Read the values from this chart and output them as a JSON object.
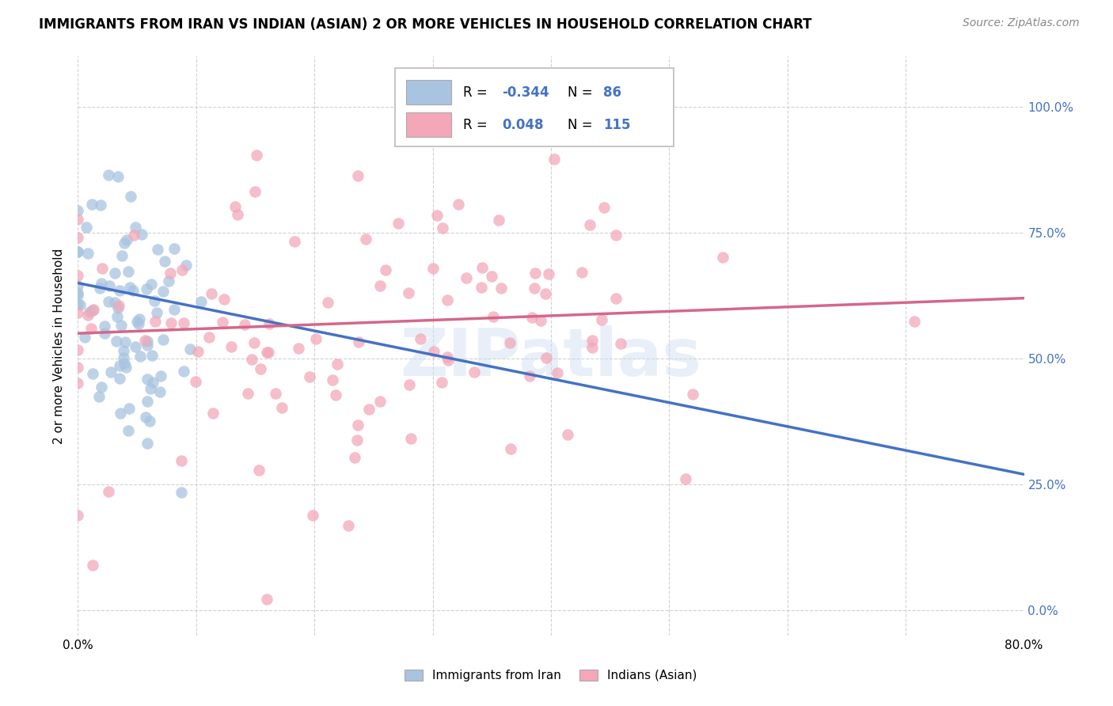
{
  "title": "IMMIGRANTS FROM IRAN VS INDIAN (ASIAN) 2 OR MORE VEHICLES IN HOUSEHOLD CORRELATION CHART",
  "source": "Source: ZipAtlas.com",
  "ylabel": "2 or more Vehicles in Household",
  "iran_R": -0.344,
  "iran_N": 86,
  "indian_R": 0.048,
  "indian_N": 115,
  "iran_color": "#a8c4e0",
  "iran_line_color": "#4472c4",
  "indian_color": "#f4a7b9",
  "indian_line_color": "#d4678a",
  "watermark": "ZIPatlas",
  "xlim": [
    0.0,
    0.8
  ],
  "ylim": [
    -0.05,
    1.1
  ],
  "iran_seed": 42,
  "indian_seed": 99,
  "title_fontsize": 12,
  "source_fontsize": 10,
  "iran_line_start_y": 0.65,
  "iran_line_end_y": 0.27,
  "indian_line_start_y": 0.55,
  "indian_line_end_y": 0.62
}
